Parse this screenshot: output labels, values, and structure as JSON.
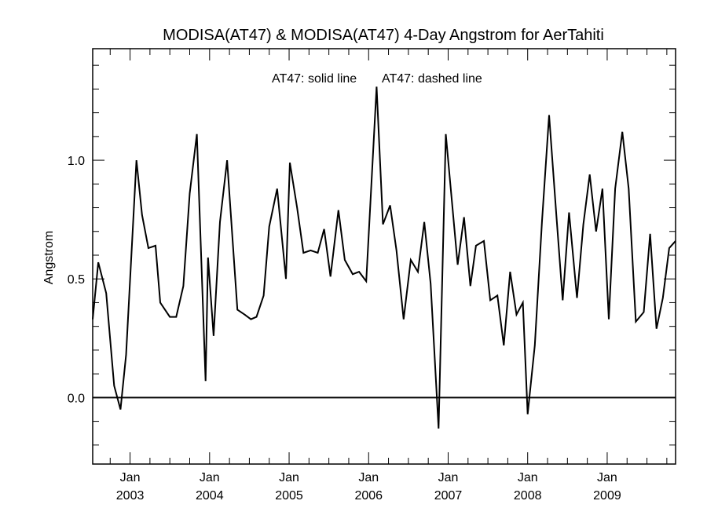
{
  "chart_data": {
    "type": "line",
    "title": "MODISA(AT47) & MODISA(AT47) 4-Day Angstrom for AerTahiti",
    "ylabel": "Angstrom",
    "xlabel": "",
    "legend": {
      "solid": "AT47: solid line",
      "dashed": "AT47: dashed line"
    },
    "ylim": [
      -0.28,
      1.47
    ],
    "xlim": [
      2002.53,
      2009.86
    ],
    "grid": false,
    "y_ticks": [
      {
        "value": 0.0,
        "label": "0.0"
      },
      {
        "value": 0.5,
        "label": "0.5"
      },
      {
        "value": 1.0,
        "label": "1.0"
      }
    ],
    "x_ticks": [
      {
        "value": 2003.0,
        "month": "Jan",
        "year": "2003"
      },
      {
        "value": 2004.0,
        "month": "Jan",
        "year": "2004"
      },
      {
        "value": 2005.0,
        "month": "Jan",
        "year": "2005"
      },
      {
        "value": 2006.0,
        "month": "Jan",
        "year": "2006"
      },
      {
        "value": 2007.0,
        "month": "Jan",
        "year": "2007"
      },
      {
        "value": 2008.0,
        "month": "Jan",
        "year": "2008"
      },
      {
        "value": 2009.0,
        "month": "Jan",
        "year": "2009"
      }
    ],
    "reference_line": {
      "y": 0.0
    },
    "series": [
      {
        "style": "solid",
        "x": [
          2002.53,
          2002.6,
          2002.7,
          2002.8,
          2002.88,
          2002.95,
          2003.08,
          2003.15,
          2003.23,
          2003.32,
          2003.38,
          2003.5,
          2003.58,
          2003.67,
          2003.75,
          2003.84,
          2003.95,
          2003.98,
          2004.05,
          2004.13,
          2004.22,
          2004.35,
          2004.44,
          2004.52,
          2004.59,
          2004.68,
          2004.75,
          2004.85,
          2004.96,
          2005.01,
          2005.1,
          2005.18,
          2005.27,
          2005.36,
          2005.44,
          2005.52,
          2005.62,
          2005.7,
          2005.8,
          2005.88,
          2005.97,
          2006.1,
          2006.18,
          2006.27,
          2006.35,
          2006.44,
          2006.53,
          2006.62,
          2006.7,
          2006.78,
          2006.88,
          2006.97,
          2007.12,
          2007.2,
          2007.28,
          2007.35,
          2007.45,
          2007.53,
          2007.62,
          2007.7,
          2007.78,
          2007.86,
          2007.94,
          2008.0,
          2008.09,
          2008.18,
          2008.27,
          2008.36,
          2008.44,
          2008.52,
          2008.62,
          2008.7,
          2008.78,
          2008.86,
          2008.94,
          2009.02,
          2009.1,
          2009.19,
          2009.27,
          2009.36,
          2009.46,
          2009.54,
          2009.62,
          2009.7,
          2009.78,
          2009.86
        ],
        "y": [
          0.33,
          0.57,
          0.44,
          0.05,
          -0.05,
          0.18,
          1.0,
          0.77,
          0.63,
          0.64,
          0.4,
          0.34,
          0.34,
          0.47,
          0.86,
          1.11,
          0.07,
          0.59,
          0.26,
          0.74,
          1.0,
          0.37,
          0.35,
          0.33,
          0.34,
          0.43,
          0.72,
          0.88,
          0.5,
          0.99,
          0.8,
          0.61,
          0.62,
          0.61,
          0.71,
          0.51,
          0.79,
          0.58,
          0.52,
          0.53,
          0.49,
          1.31,
          0.73,
          0.81,
          0.62,
          0.33,
          0.58,
          0.53,
          0.74,
          0.48,
          -0.13,
          1.11,
          0.56,
          0.76,
          0.47,
          0.64,
          0.66,
          0.41,
          0.43,
          0.22,
          0.53,
          0.35,
          0.4,
          -0.07,
          0.22,
          0.74,
          1.19,
          0.77,
          0.41,
          0.78,
          0.42,
          0.73,
          0.94,
          0.7,
          0.88,
          0.33,
          0.88,
          1.12,
          0.88,
          0.32,
          0.36,
          0.69,
          0.29,
          0.42,
          0.63,
          0.66
        ]
      }
    ]
  }
}
